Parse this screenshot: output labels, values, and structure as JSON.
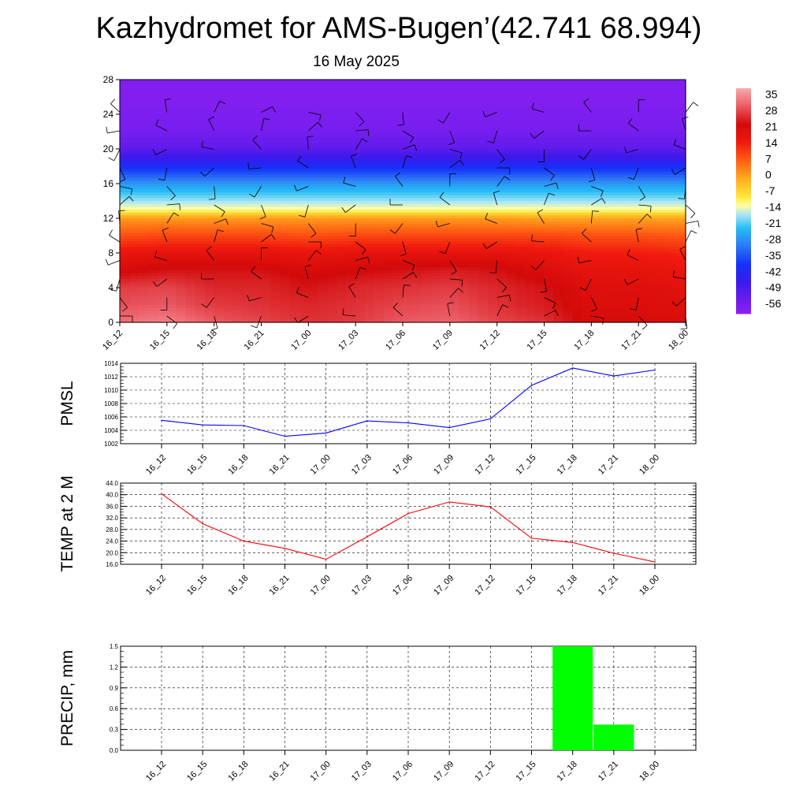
{
  "title": "Kazhydromet for AMS-Bugen’(42.741 68.994)",
  "subtitle": "16 May 2025",
  "time_labels": [
    "16_12",
    "16_15",
    "16_18",
    "16_21",
    "17_00",
    "17_03",
    "17_06",
    "17_09",
    "17_12",
    "17_15",
    "17_18",
    "17_21",
    "18_00"
  ],
  "chart_data": [
    {
      "type": "heatmap",
      "name": "temperature-height-cross-section",
      "ylim": [
        0,
        28
      ],
      "y_ticks": [
        0,
        4,
        8,
        12,
        16,
        20,
        24,
        28
      ],
      "colorbar_labels": [
        "35",
        "28",
        "21",
        "14",
        "7",
        "0",
        "-7",
        "-14",
        "-21",
        "-28",
        "-35",
        "-42",
        "-49",
        "-56"
      ],
      "colorbar_range": [
        -60,
        39
      ],
      "levels": [
        0,
        2,
        4,
        6,
        8,
        10,
        12,
        13,
        14,
        16,
        18,
        20,
        22,
        24,
        26,
        28
      ],
      "temperature_profiles": [
        [
          33,
          30,
          28,
          22,
          17,
          9,
          1,
          -12,
          -17,
          -27,
          -40,
          -52,
          -56,
          -57,
          -58,
          -58
        ],
        [
          35,
          31,
          29,
          24,
          18,
          10,
          1,
          -12,
          -17,
          -27,
          -40,
          -52,
          -56,
          -57,
          -58,
          -58
        ],
        [
          31,
          28,
          26,
          24,
          18,
          10,
          1,
          -12,
          -17,
          -27,
          -40,
          -52,
          -56,
          -57,
          -58,
          -58
        ],
        [
          29,
          27,
          26,
          24,
          18,
          10,
          1,
          -12,
          -17,
          -27,
          -40,
          -52,
          -56,
          -57,
          -58,
          -58
        ],
        [
          27,
          26,
          24,
          22,
          17,
          9,
          1,
          -12,
          -17,
          -27,
          -40,
          -52,
          -56,
          -57,
          -58,
          -58
        ],
        [
          28,
          27,
          26,
          23,
          18,
          10,
          1,
          -12,
          -17,
          -27,
          -40,
          -52,
          -56,
          -57,
          -58,
          -58
        ],
        [
          31,
          29,
          27,
          24,
          18,
          10,
          1,
          -12,
          -17,
          -27,
          -40,
          -52,
          -56,
          -57,
          -58,
          -58
        ],
        [
          32,
          30,
          28,
          25,
          18,
          10,
          1,
          -12,
          -17,
          -27,
          -40,
          -52,
          -56,
          -57,
          -58,
          -58
        ],
        [
          29,
          27,
          26,
          24,
          18,
          10,
          1,
          -12,
          -17,
          -27,
          -40,
          -52,
          -56,
          -57,
          -58,
          -58
        ],
        [
          27,
          25,
          24,
          21,
          17,
          10,
          0,
          -12,
          -17,
          -27,
          -40,
          -52,
          -56,
          -57,
          -58,
          -58
        ],
        [
          22,
          21,
          20,
          18,
          15,
          9,
          0,
          -12,
          -17,
          -27,
          -40,
          -52,
          -56,
          -57,
          -58,
          -58
        ],
        [
          22,
          21,
          20,
          18,
          15,
          9,
          0,
          -12,
          -17,
          -27,
          -40,
          -52,
          -56,
          -57,
          -58,
          -58
        ],
        [
          21,
          20,
          19,
          17,
          14,
          8,
          0,
          -12,
          -17,
          -27,
          -40,
          -52,
          -56,
          -57,
          -58,
          -58
        ]
      ]
    },
    {
      "type": "line",
      "name": "pmsl",
      "ylabel": "PMSL",
      "ylim": [
        1002,
        1014
      ],
      "y_ticks": [
        1002,
        1004,
        1006,
        1008,
        1010,
        1012,
        1014
      ],
      "y_tick_labels": [
        "1002",
        "1004",
        "1006",
        "1008",
        "1010",
        "1012",
        "1014"
      ],
      "values": [
        1005.5,
        1004.8,
        1004.7,
        1003.1,
        1003.6,
        1005.4,
        1005.1,
        1004.4,
        1005.7,
        1010.7,
        1013.3,
        1012.1,
        1013.0
      ],
      "color": "#0000ff"
    },
    {
      "type": "line",
      "name": "temp2m",
      "ylabel": "TEMP at 2 M",
      "ylim": [
        16,
        44
      ],
      "y_ticks": [
        16,
        20,
        24,
        28,
        32,
        36,
        40,
        44
      ],
      "y_tick_labels": [
        "16.0",
        "20.0",
        "24.0",
        "28.0",
        "32.0",
        "36.0",
        "40.0",
        "44.0"
      ],
      "values": [
        40.3,
        30.0,
        24.0,
        21.5,
        17.7,
        25.5,
        33.5,
        37.5,
        35.8,
        25.0,
        23.5,
        19.8,
        16.8
      ],
      "color": "#ff0000"
    },
    {
      "type": "bar",
      "name": "precip",
      "ylabel": "PRECIP, mm",
      "ylim": [
        0,
        1.5
      ],
      "y_ticks": [
        0,
        0.3,
        0.6,
        0.9,
        1.2,
        1.5
      ],
      "y_tick_labels": [
        "0.0",
        "0.3",
        "0.6",
        "0.9",
        "1.2",
        "1.5"
      ],
      "values": [
        0,
        0,
        0,
        0,
        0,
        0,
        0,
        0,
        0,
        0,
        1.5,
        0.37,
        0
      ],
      "color": "#00ff00"
    }
  ]
}
